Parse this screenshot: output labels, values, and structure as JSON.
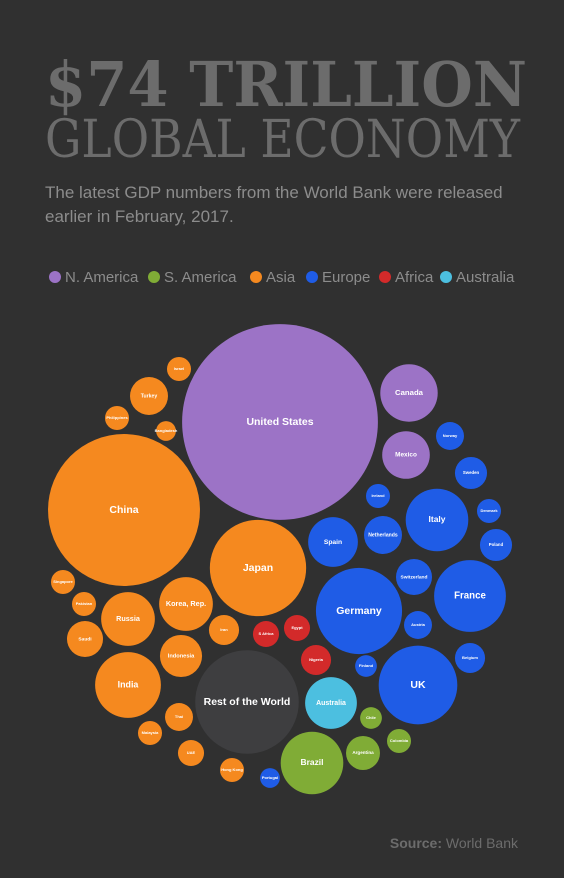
{
  "chart_data": {
    "type": "bubble",
    "title": "$74 TRILLION",
    "subtitle": "GLOBAL ECONOMY",
    "description": [
      "The latest GDP numbers from the World Bank were released",
      "earlier in February, 2017."
    ],
    "source_label": "Source:",
    "source": "World Bank",
    "series": [
      {
        "name": "N. America",
        "color": "#9c73c6",
        "labels": [
          "United States",
          "Canada",
          "Mexico"
        ],
        "values": [
          18.6,
          1.6,
          1.1
        ]
      },
      {
        "name": "S. America",
        "color": "#80ac36",
        "labels": [
          "Brazil",
          "Argentina",
          "Chile",
          "Colombia"
        ],
        "values": [
          1.9,
          0.56,
          0.23,
          0.28
        ]
      },
      {
        "name": "Asia",
        "color": "#f5891f",
        "labels": [
          "China",
          "Japan",
          "India",
          "Korea, Rep.",
          "Russia",
          "Indonesia",
          "Turkey",
          "Saudi",
          "Thai",
          "Iran",
          "UAE",
          "Israel",
          "Hong Kong",
          "Philippines",
          "Singapore",
          "Malaysia",
          "Pakistan",
          "Bangladesh"
        ],
        "values": [
          11.2,
          4.5,
          2.1,
          1.4,
          1.4,
          0.86,
          0.7,
          0.63,
          0.38,
          0.44,
          0.33,
          0.28,
          0.28,
          0.28,
          0.28,
          0.28,
          0.28,
          0.19
        ]
      },
      {
        "name": "Europe",
        "color": "#1f5ce6",
        "labels": [
          "Germany",
          "UK",
          "France",
          "Italy",
          "Spain",
          "Netherlands",
          "Switzerland",
          "Sweden",
          "Poland",
          "Belgium",
          "Austria",
          "Norway",
          "Denmark",
          "Ireland",
          "Finland",
          "Portugal"
        ],
        "values": [
          3.6,
          3.0,
          2.5,
          1.9,
          1.2,
          0.7,
          0.63,
          0.5,
          0.5,
          0.44,
          0.38,
          0.38,
          0.28,
          0.28,
          0.23,
          0.19
        ]
      },
      {
        "name": "Africa",
        "color": "#d32a2a",
        "labels": [
          "Nigeria",
          "Egypt",
          "S Africa"
        ],
        "values": [
          0.44,
          0.33,
          0.33
        ]
      },
      {
        "name": "Australia",
        "color": "#4cbfe0",
        "labels": [
          "Australia"
        ],
        "values": [
          1.3
        ]
      }
    ],
    "other": {
      "label": "Rest of the World",
      "color": "#3e3e40",
      "value": 5.2
    }
  }
}
